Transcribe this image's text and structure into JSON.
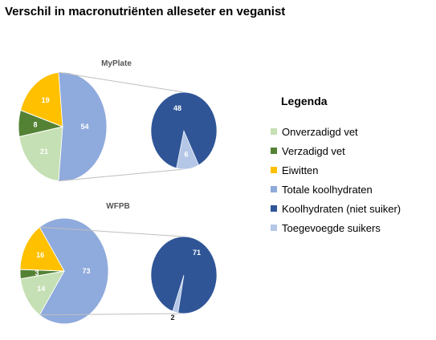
{
  "title": "Verschil in macronutriënten alleseter en veganist",
  "legend": {
    "title": "Legenda",
    "items": [
      {
        "label": "Onverzadigd vet",
        "color": "#c5e0b4"
      },
      {
        "label": "Verzadigd vet",
        "color": "#548235"
      },
      {
        "label": "Eiwitten",
        "color": "#ffc000"
      },
      {
        "label": "Totale koolhydraten",
        "color": "#8faadc"
      },
      {
        "label": "Koolhydraten (niet suiker)",
        "color": "#2f5597"
      },
      {
        "label": "Toegevoegde suikers",
        "color": "#b4c7e7"
      }
    ]
  },
  "chart_data": [
    {
      "type": "pie",
      "title": "MyPlate",
      "slices": [
        {
          "name": "Totale koolhydraten",
          "value": 54,
          "label": "54",
          "color": "#8faadc"
        },
        {
          "name": "Onverzadigd vet",
          "value": 21,
          "label": "21",
          "color": "#c5e0b4"
        },
        {
          "name": "Verzadigd vet",
          "value": 8,
          "label": "8",
          "color": "#548235"
        },
        {
          "name": "Eiwitten",
          "value": 19,
          "label": "19",
          "color": "#ffc000"
        }
      ],
      "breakdown": {
        "of": "Totale koolhydraten",
        "slices": [
          {
            "name": "Koolhydraten (niet suiker)",
            "value": 48,
            "label": "48",
            "color": "#2f5597"
          },
          {
            "name": "Toegevoegde suikers",
            "value": 6,
            "label": "6",
            "color": "#b4c7e7"
          }
        ]
      }
    },
    {
      "type": "pie",
      "title": "WFPB",
      "slices": [
        {
          "name": "Totale koolhydraten",
          "value": 73,
          "label": "73",
          "color": "#8faadc"
        },
        {
          "name": "Onverzadigd vet",
          "value": 14,
          "label": "14",
          "color": "#c5e0b4"
        },
        {
          "name": "Verzadigd vet",
          "value": 3,
          "label": "3",
          "color": "#548235"
        },
        {
          "name": "Eiwitten",
          "value": 16,
          "label": "16",
          "color": "#ffc000"
        }
      ],
      "breakdown": {
        "of": "Totale koolhydraten",
        "slices": [
          {
            "name": "Koolhydraten (niet suiker)",
            "value": 71,
            "label": "71",
            "color": "#2f5597"
          },
          {
            "name": "Toegevoegde suikers",
            "value": 2,
            "label": "2",
            "color": "#b4c7e7"
          }
        ]
      }
    }
  ]
}
